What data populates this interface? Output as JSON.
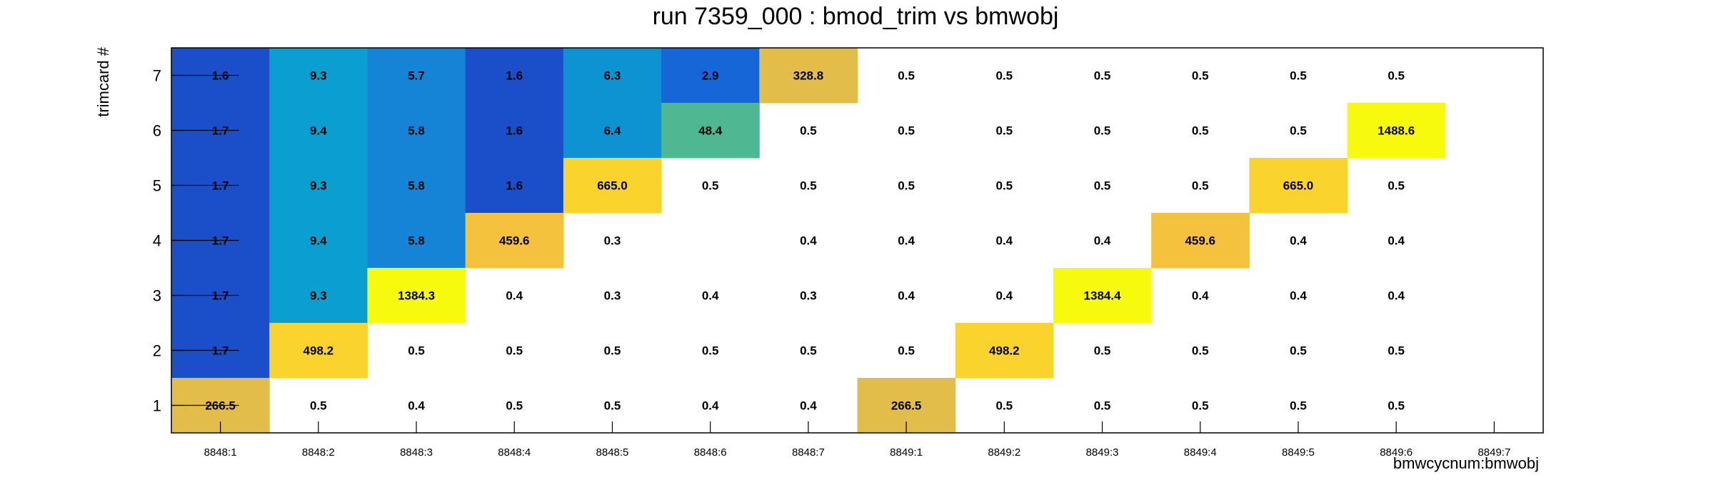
{
  "chart_data": {
    "type": "heatmap",
    "title": "run 7359_000 : bmod_trim vs bmwobj",
    "xlabel": "bmwcycnum:bmwobj",
    "ylabel": "trimcard #",
    "x_categories": [
      "8848:1",
      "8848:2",
      "8848:3",
      "8848:4",
      "8848:5",
      "8848:6",
      "8848:7",
      "8849:1",
      "8849:2",
      "8849:3",
      "8849:4",
      "8849:5",
      "8849:6",
      "8849:7"
    ],
    "y_categories": [
      "1",
      "2",
      "3",
      "4",
      "5",
      "6",
      "7"
    ],
    "colors": {
      "very_low": "#1a4fc9",
      "low_blue": "#1567d8",
      "mid_blue": "#1684d6",
      "light_blue": "#0b9fcf",
      "aqua": "#0e93d2",
      "teal_green": "#4db891",
      "gold_low": "#e2bd4a",
      "gold": "#f4c23c",
      "bright_yellow": "#fad42c",
      "yellow": "#f8fa0e"
    },
    "cells": [
      {
        "x": 0,
        "y": 7,
        "value": "1.6",
        "color": "very_low"
      },
      {
        "x": 1,
        "y": 7,
        "value": "9.3",
        "color": "light_blue"
      },
      {
        "x": 2,
        "y": 7,
        "value": "5.7",
        "color": "mid_blue"
      },
      {
        "x": 3,
        "y": 7,
        "value": "1.6",
        "color": "very_low"
      },
      {
        "x": 4,
        "y": 7,
        "value": "6.3",
        "color": "aqua"
      },
      {
        "x": 5,
        "y": 7,
        "value": "2.9",
        "color": "low_blue"
      },
      {
        "x": 6,
        "y": 7,
        "value": "328.8",
        "color": "gold_low"
      },
      {
        "x": 7,
        "y": 7,
        "value": "0.5",
        "color": null
      },
      {
        "x": 8,
        "y": 7,
        "value": "0.5",
        "color": null
      },
      {
        "x": 9,
        "y": 7,
        "value": "0.5",
        "color": null
      },
      {
        "x": 10,
        "y": 7,
        "value": "0.5",
        "color": null
      },
      {
        "x": 11,
        "y": 7,
        "value": "0.5",
        "color": null
      },
      {
        "x": 12,
        "y": 7,
        "value": "0.5",
        "color": null
      },
      {
        "x": 0,
        "y": 6,
        "value": "1.7",
        "color": "very_low"
      },
      {
        "x": 1,
        "y": 6,
        "value": "9.4",
        "color": "light_blue"
      },
      {
        "x": 2,
        "y": 6,
        "value": "5.8",
        "color": "mid_blue"
      },
      {
        "x": 3,
        "y": 6,
        "value": "1.6",
        "color": "very_low"
      },
      {
        "x": 4,
        "y": 6,
        "value": "6.4",
        "color": "aqua"
      },
      {
        "x": 5,
        "y": 6,
        "value": "48.4",
        "color": "teal_green"
      },
      {
        "x": 6,
        "y": 6,
        "value": "0.5",
        "color": null
      },
      {
        "x": 7,
        "y": 6,
        "value": "0.5",
        "color": null
      },
      {
        "x": 8,
        "y": 6,
        "value": "0.5",
        "color": null
      },
      {
        "x": 9,
        "y": 6,
        "value": "0.5",
        "color": null
      },
      {
        "x": 10,
        "y": 6,
        "value": "0.5",
        "color": null
      },
      {
        "x": 11,
        "y": 6,
        "value": "0.5",
        "color": null
      },
      {
        "x": 12,
        "y": 6,
        "value": "1488.6",
        "color": "yellow"
      },
      {
        "x": 0,
        "y": 5,
        "value": "1.7",
        "color": "very_low"
      },
      {
        "x": 1,
        "y": 5,
        "value": "9.3",
        "color": "light_blue"
      },
      {
        "x": 2,
        "y": 5,
        "value": "5.8",
        "color": "mid_blue"
      },
      {
        "x": 3,
        "y": 5,
        "value": "1.6",
        "color": "very_low"
      },
      {
        "x": 4,
        "y": 5,
        "value": "665.0",
        "color": "bright_yellow"
      },
      {
        "x": 5,
        "y": 5,
        "value": "0.5",
        "color": null
      },
      {
        "x": 6,
        "y": 5,
        "value": "0.5",
        "color": null
      },
      {
        "x": 7,
        "y": 5,
        "value": "0.5",
        "color": null
      },
      {
        "x": 8,
        "y": 5,
        "value": "0.5",
        "color": null
      },
      {
        "x": 9,
        "y": 5,
        "value": "0.5",
        "color": null
      },
      {
        "x": 10,
        "y": 5,
        "value": "0.5",
        "color": null
      },
      {
        "x": 11,
        "y": 5,
        "value": "665.0",
        "color": "bright_yellow"
      },
      {
        "x": 12,
        "y": 5,
        "value": "0.5",
        "color": null
      },
      {
        "x": 0,
        "y": 4,
        "value": "1.7",
        "color": "very_low"
      },
      {
        "x": 1,
        "y": 4,
        "value": "9.4",
        "color": "light_blue"
      },
      {
        "x": 2,
        "y": 4,
        "value": "5.8",
        "color": "mid_blue"
      },
      {
        "x": 3,
        "y": 4,
        "value": "459.6",
        "color": "gold"
      },
      {
        "x": 4,
        "y": 4,
        "value": "0.3",
        "color": null
      },
      {
        "x": 6,
        "y": 4,
        "value": "0.4",
        "color": null
      },
      {
        "x": 7,
        "y": 4,
        "value": "0.4",
        "color": null
      },
      {
        "x": 8,
        "y": 4,
        "value": "0.4",
        "color": null
      },
      {
        "x": 9,
        "y": 4,
        "value": "0.4",
        "color": null
      },
      {
        "x": 10,
        "y": 4,
        "value": "459.6",
        "color": "gold"
      },
      {
        "x": 11,
        "y": 4,
        "value": "0.4",
        "color": null
      },
      {
        "x": 12,
        "y": 4,
        "value": "0.4",
        "color": null
      },
      {
        "x": 0,
        "y": 3,
        "value": "1.7",
        "color": "very_low"
      },
      {
        "x": 1,
        "y": 3,
        "value": "9.3",
        "color": "light_blue"
      },
      {
        "x": 2,
        "y": 3,
        "value": "1384.3",
        "color": "yellow"
      },
      {
        "x": 3,
        "y": 3,
        "value": "0.4",
        "color": null
      },
      {
        "x": 4,
        "y": 3,
        "value": "0.3",
        "color": null
      },
      {
        "x": 5,
        "y": 3,
        "value": "0.4",
        "color": null
      },
      {
        "x": 6,
        "y": 3,
        "value": "0.3",
        "color": null
      },
      {
        "x": 7,
        "y": 3,
        "value": "0.4",
        "color": null
      },
      {
        "x": 8,
        "y": 3,
        "value": "0.4",
        "color": null
      },
      {
        "x": 9,
        "y": 3,
        "value": "1384.4",
        "color": "yellow"
      },
      {
        "x": 10,
        "y": 3,
        "value": "0.4",
        "color": null
      },
      {
        "x": 11,
        "y": 3,
        "value": "0.4",
        "color": null
      },
      {
        "x": 12,
        "y": 3,
        "value": "0.4",
        "color": null
      },
      {
        "x": 0,
        "y": 2,
        "value": "1.7",
        "color": "very_low"
      },
      {
        "x": 1,
        "y": 2,
        "value": "498.2",
        "color": "bright_yellow"
      },
      {
        "x": 2,
        "y": 2,
        "value": "0.5",
        "color": null
      },
      {
        "x": 3,
        "y": 2,
        "value": "0.5",
        "color": null
      },
      {
        "x": 4,
        "y": 2,
        "value": "0.5",
        "color": null
      },
      {
        "x": 5,
        "y": 2,
        "value": "0.5",
        "color": null
      },
      {
        "x": 6,
        "y": 2,
        "value": "0.5",
        "color": null
      },
      {
        "x": 7,
        "y": 2,
        "value": "0.5",
        "color": null
      },
      {
        "x": 8,
        "y": 2,
        "value": "498.2",
        "color": "bright_yellow"
      },
      {
        "x": 9,
        "y": 2,
        "value": "0.5",
        "color": null
      },
      {
        "x": 10,
        "y": 2,
        "value": "0.5",
        "color": null
      },
      {
        "x": 11,
        "y": 2,
        "value": "0.5",
        "color": null
      },
      {
        "x": 12,
        "y": 2,
        "value": "0.5",
        "color": null
      },
      {
        "x": 0,
        "y": 1,
        "value": "266.5",
        "color": "gold_low"
      },
      {
        "x": 1,
        "y": 1,
        "value": "0.5",
        "color": null
      },
      {
        "x": 2,
        "y": 1,
        "value": "0.4",
        "color": null
      },
      {
        "x": 3,
        "y": 1,
        "value": "0.5",
        "color": null
      },
      {
        "x": 4,
        "y": 1,
        "value": "0.5",
        "color": null
      },
      {
        "x": 5,
        "y": 1,
        "value": "0.4",
        "color": null
      },
      {
        "x": 6,
        "y": 1,
        "value": "0.4",
        "color": null
      },
      {
        "x": 7,
        "y": 1,
        "value": "266.5",
        "color": "gold_low"
      },
      {
        "x": 8,
        "y": 1,
        "value": "0.5",
        "color": null
      },
      {
        "x": 9,
        "y": 1,
        "value": "0.5",
        "color": null
      },
      {
        "x": 10,
        "y": 1,
        "value": "0.5",
        "color": null
      },
      {
        "x": 11,
        "y": 1,
        "value": "0.5",
        "color": null
      },
      {
        "x": 12,
        "y": 1,
        "value": "0.5",
        "color": null
      }
    ],
    "error_bar_column": 0
  }
}
